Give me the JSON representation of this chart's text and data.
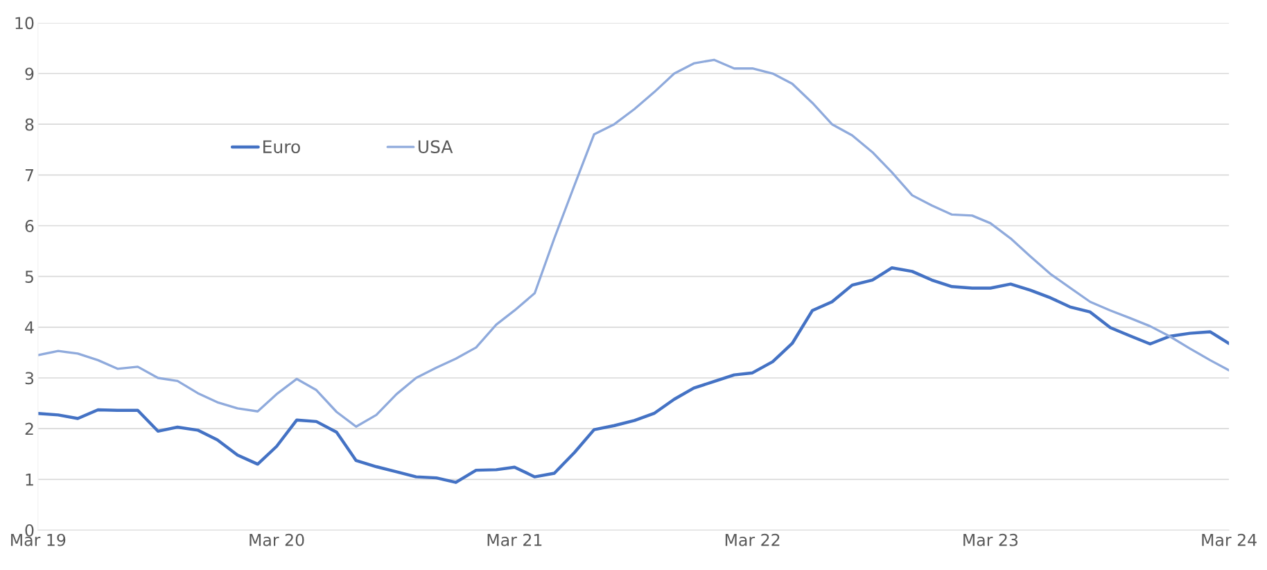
{
  "chart_data": {
    "type": "line",
    "x": [
      "2019-03",
      "2019-04",
      "2019-05",
      "2019-06",
      "2019-07",
      "2019-08",
      "2019-09",
      "2019-10",
      "2019-11",
      "2019-12",
      "2020-01",
      "2020-02",
      "2020-03",
      "2020-04",
      "2020-05",
      "2020-06",
      "2020-07",
      "2020-08",
      "2020-09",
      "2020-10",
      "2020-11",
      "2020-12",
      "2021-01",
      "2021-02",
      "2021-03",
      "2021-04",
      "2021-05",
      "2021-06",
      "2021-07",
      "2021-08",
      "2021-09",
      "2021-10",
      "2021-11",
      "2021-12",
      "2022-01",
      "2022-02",
      "2022-03",
      "2022-04",
      "2022-05",
      "2022-06",
      "2022-07",
      "2022-08",
      "2022-09",
      "2022-10",
      "2022-11",
      "2022-12",
      "2023-01",
      "2023-02",
      "2023-03",
      "2023-04",
      "2023-05",
      "2023-06",
      "2023-07",
      "2023-08",
      "2023-09",
      "2023-10",
      "2023-11",
      "2023-12",
      "2024-01",
      "2024-02",
      "2024-03"
    ],
    "series": [
      {
        "name": "Euro",
        "color": "#4472c4",
        "values": [
          2.3,
          2.27,
          2.2,
          2.37,
          2.36,
          2.36,
          1.95,
          2.03,
          1.97,
          1.78,
          1.48,
          1.3,
          1.65,
          2.17,
          2.14,
          1.93,
          1.37,
          1.25,
          1.15,
          1.05,
          1.03,
          0.94,
          1.18,
          1.19,
          1.24,
          1.05,
          1.12,
          1.53,
          1.98,
          2.06,
          2.16,
          2.3,
          2.58,
          2.8,
          2.93,
          3.06,
          3.1,
          3.32,
          3.68,
          4.33,
          4.5,
          4.83,
          4.93,
          5.17,
          5.1,
          4.93,
          4.8,
          4.77,
          4.77,
          4.85,
          4.73,
          4.58,
          4.4,
          4.3,
          3.99,
          3.83,
          3.67,
          3.82,
          3.88,
          3.91,
          3.68
        ]
      },
      {
        "name": "USA",
        "color": "#8faadc",
        "values": [
          3.45,
          3.53,
          3.48,
          3.35,
          3.18,
          3.22,
          3.0,
          2.94,
          2.7,
          2.52,
          2.4,
          2.34,
          2.68,
          2.98,
          2.76,
          2.33,
          2.04,
          2.27,
          2.68,
          3.0,
          3.2,
          3.38,
          3.6,
          4.05,
          4.33,
          4.67,
          5.75,
          6.8,
          7.8,
          8.0,
          8.3,
          8.63,
          9.0,
          9.2,
          9.27,
          9.1,
          9.1,
          9.0,
          8.8,
          8.42,
          8.0,
          7.78,
          7.45,
          7.05,
          6.6,
          6.4,
          6.22,
          6.2,
          6.05,
          5.75,
          5.4,
          5.05,
          4.78,
          4.5,
          4.33,
          4.18,
          4.02,
          3.82,
          3.58,
          3.35,
          3.15
        ]
      }
    ],
    "xlim": [
      "2019-03",
      "2024-03"
    ],
    "xticks": [
      {
        "value": "2019-03",
        "label": "Mar 19"
      },
      {
        "value": "2020-03",
        "label": "Mar 20"
      },
      {
        "value": "2021-03",
        "label": "Mar 21"
      },
      {
        "value": "2022-03",
        "label": "Mar 22"
      },
      {
        "value": "2023-03",
        "label": "Mar 23"
      },
      {
        "value": "2024-03",
        "label": "Mar 24"
      }
    ],
    "ylim": [
      0,
      10
    ],
    "yticks": [
      0,
      1,
      2,
      3,
      4,
      5,
      6,
      7,
      8,
      9,
      10
    ],
    "grid": "y",
    "legend": "top left",
    "marker": "none",
    "line_style": "solid"
  }
}
